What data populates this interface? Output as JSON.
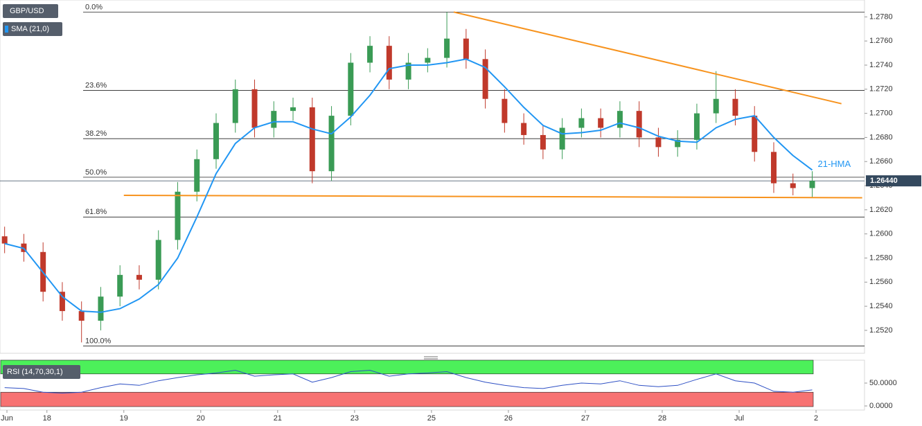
{
  "chart_data": {
    "type": "candlestick",
    "x": [
      -0.55,
      -0.3,
      -0.05,
      0.2,
      0.45,
      0.7,
      0.95,
      1.2,
      1.45,
      1.7,
      1.95,
      2.2,
      2.45,
      2.7,
      2.95,
      3.2,
      3.45,
      3.7,
      3.95,
      4.2,
      4.45,
      4.7,
      4.95,
      5.2,
      5.45,
      5.7,
      5.95,
      6.2,
      6.45,
      6.7,
      6.95,
      7.2,
      7.45,
      7.7,
      7.95,
      8.2,
      8.45,
      8.7,
      8.95,
      9.2,
      9.45,
      9.7,
      9.95
    ],
    "xlim": [
      -0.61,
      10.63
    ],
    "xticks": [
      {
        "value": -0.52,
        "label": "Jun"
      },
      {
        "value": 0,
        "label": "18"
      },
      {
        "value": 1,
        "label": "19"
      },
      {
        "value": 2,
        "label": "20"
      },
      {
        "value": 3,
        "label": "21"
      },
      {
        "value": 4,
        "label": "23"
      },
      {
        "value": 5,
        "label": "25"
      },
      {
        "value": 6,
        "label": "26"
      },
      {
        "value": 7,
        "label": "27"
      },
      {
        "value": 8,
        "label": "28"
      },
      {
        "value": 9,
        "label": "Jul"
      },
      {
        "value": 10,
        "label": "2"
      }
    ],
    "ylim": [
      1.2501,
      1.2794
    ],
    "yticks": [
      {
        "value": 1.252,
        "label": "1.2520"
      },
      {
        "value": 1.254,
        "label": "1.2540"
      },
      {
        "value": 1.256,
        "label": "1.2560"
      },
      {
        "value": 1.258,
        "label": "1.2580"
      },
      {
        "value": 1.26,
        "label": "1.2600"
      },
      {
        "value": 1.262,
        "label": "1.2620"
      },
      {
        "value": 1.264,
        "label": "1.2640"
      },
      {
        "value": 1.266,
        "label": "1.2660"
      },
      {
        "value": 1.268,
        "label": "1.2680"
      },
      {
        "value": 1.27,
        "label": "1.2700"
      },
      {
        "value": 1.272,
        "label": "1.2720"
      },
      {
        "value": 1.274,
        "label": "1.2740"
      },
      {
        "value": 1.276,
        "label": "1.2760"
      },
      {
        "value": 1.278,
        "label": "1.2780"
      }
    ],
    "series": [
      {
        "name": "GBP/USD",
        "up_color": "#3a9b55",
        "down_color": "#c0392b",
        "open": [
          1.2598,
          1.2592,
          1.2585,
          1.2552,
          1.2536,
          1.2528,
          1.2548,
          1.2566,
          1.2562,
          1.2595,
          1.2635,
          1.2662,
          1.2692,
          1.272,
          1.2688,
          1.2702,
          1.2705,
          1.2652,
          1.2698,
          1.2742,
          1.2756,
          1.2728,
          1.2742,
          1.2746,
          1.2762,
          1.2745,
          1.2712,
          1.2692,
          1.2682,
          1.267,
          1.2688,
          1.2696,
          1.2688,
          1.2702,
          1.268,
          1.2672,
          1.2678,
          1.27,
          1.2712,
          1.2698,
          1.2668,
          1.2642,
          1.2638
        ],
        "high": [
          1.2606,
          1.26,
          1.2593,
          1.256,
          1.2544,
          1.2556,
          1.2574,
          1.2574,
          1.2603,
          1.2643,
          1.267,
          1.27,
          1.2728,
          1.2728,
          1.271,
          1.2713,
          1.2713,
          1.2706,
          1.275,
          1.2764,
          1.2764,
          1.275,
          1.2754,
          1.2784,
          1.277,
          1.2753,
          1.272,
          1.27,
          1.269,
          1.2696,
          1.2704,
          1.2704,
          1.271,
          1.271,
          1.2688,
          1.2686,
          1.2708,
          1.2735,
          1.272,
          1.2706,
          1.2676,
          1.265,
          1.2652
        ],
        "low": [
          1.2584,
          1.2577,
          1.2544,
          1.2528,
          1.251,
          1.252,
          1.254,
          1.2554,
          1.2554,
          1.2587,
          1.2627,
          1.2654,
          1.2684,
          1.268,
          1.268,
          1.2694,
          1.2642,
          1.2644,
          1.269,
          1.2734,
          1.272,
          1.272,
          1.2734,
          1.2738,
          1.2737,
          1.2704,
          1.2684,
          1.2674,
          1.2662,
          1.2662,
          1.268,
          1.268,
          1.268,
          1.2672,
          1.2664,
          1.2664,
          1.267,
          1.2692,
          1.269,
          1.266,
          1.2634,
          1.2632,
          1.263
        ],
        "close": [
          1.2592,
          1.2585,
          1.2552,
          1.2536,
          1.2528,
          1.2548,
          1.2566,
          1.2562,
          1.2595,
          1.2635,
          1.2662,
          1.2692,
          1.272,
          1.2688,
          1.2702,
          1.2705,
          1.2652,
          1.2698,
          1.2742,
          1.2756,
          1.2728,
          1.2742,
          1.2746,
          1.2762,
          1.2745,
          1.2712,
          1.2692,
          1.2682,
          1.267,
          1.2688,
          1.2696,
          1.2688,
          1.2702,
          1.268,
          1.2672,
          1.2678,
          1.27,
          1.2712,
          1.2698,
          1.2668,
          1.2642,
          1.2638,
          1.2644
        ]
      },
      {
        "name": "SMA (21,0)",
        "label": "21-HMA",
        "color": "#2196f3",
        "values": [
          1.2592,
          1.2588,
          1.2568,
          1.2548,
          1.2536,
          1.2535,
          1.2538,
          1.2546,
          1.2558,
          1.258,
          1.2614,
          1.265,
          1.2675,
          1.2688,
          1.2693,
          1.2693,
          1.2687,
          1.2683,
          1.2697,
          1.2715,
          1.2737,
          1.274,
          1.274,
          1.2742,
          1.2745,
          1.2738,
          1.2722,
          1.2705,
          1.269,
          1.2683,
          1.2684,
          1.2686,
          1.2692,
          1.2688,
          1.2681,
          1.2677,
          1.2676,
          1.2688,
          1.2695,
          1.2698,
          1.268,
          1.2665,
          1.2653
        ]
      }
    ],
    "fib_levels": [
      {
        "label": "0.0%",
        "value": 1.2784
      },
      {
        "label": "23.6%",
        "value": 1.2719
      },
      {
        "label": "38.2%",
        "value": 1.2679
      },
      {
        "label": "50.0%",
        "value": 1.2647
      },
      {
        "label": "61.8%",
        "value": 1.2614
      },
      {
        "label": "100.0%",
        "value": 1.2507
      }
    ],
    "trendlines": [
      {
        "color": "#f7931e",
        "x": [
          5.29,
          10.33
        ],
        "y": [
          1.2784,
          1.2708
        ]
      },
      {
        "color": "#f7931e",
        "x": [
          1.0,
          10.6
        ],
        "y": [
          1.2632,
          1.263
        ]
      }
    ],
    "last_price": {
      "value": 1.2644,
      "label": "1.26440"
    },
    "rsi": {
      "name": "RSI (14,70,30,1)",
      "color": "#2d4fc4",
      "values": [
        40,
        38,
        30,
        28,
        30,
        40,
        48,
        45,
        55,
        62,
        68,
        72,
        78,
        65,
        68,
        70,
        52,
        62,
        75,
        78,
        65,
        70,
        72,
        75,
        62,
        52,
        45,
        40,
        38,
        45,
        50,
        48,
        55,
        45,
        42,
        45,
        58,
        70,
        55,
        50,
        32,
        30,
        35
      ],
      "ylim": [
        -6,
        100
      ],
      "levels": [
        70,
        30
      ],
      "level_colors": [
        "#4cf05a",
        "#f77272"
      ],
      "yticks": [
        {
          "value": 50,
          "label": "50.0000"
        },
        {
          "value": 0,
          "label": "0.0000"
        }
      ]
    }
  }
}
